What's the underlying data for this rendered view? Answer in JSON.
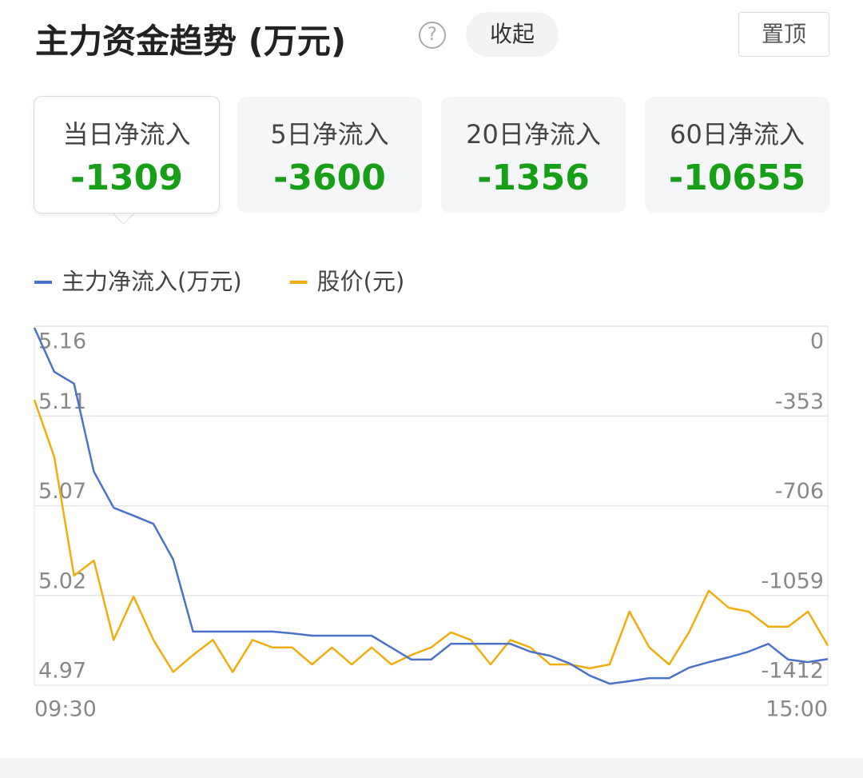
{
  "header": {
    "title": "主力资金趋势 (万元)",
    "help": "?",
    "collapse": "收起",
    "pin": "置顶"
  },
  "cards": [
    {
      "label": "当日净流入",
      "value": "-1309"
    },
    {
      "label": "5日净流入",
      "value": "-3600"
    },
    {
      "label": "20日净流入",
      "value": "-1356"
    },
    {
      "label": "60日净流入",
      "value": "-10655"
    }
  ],
  "chart_data": {
    "type": "line",
    "grid": true,
    "x": [
      0,
      6,
      12,
      18,
      24,
      30,
      36,
      42,
      48,
      54,
      60,
      66,
      72,
      78,
      84,
      90,
      96,
      102,
      108,
      114,
      120,
      126,
      132,
      138,
      144,
      150,
      156,
      162,
      168,
      174,
      180,
      186,
      192,
      198,
      204,
      210,
      216,
      222,
      228,
      234,
      240
    ],
    "xlim": [
      0,
      240
    ],
    "xticks": [
      {
        "value": 0,
        "label": "09:30"
      },
      {
        "value": 240,
        "label": "15:00"
      }
    ],
    "ylim": [
      4.97,
      5.16
    ],
    "yticks": [
      {
        "value": 5.16,
        "label": "5.16"
      },
      {
        "value": 5.1125,
        "label": "5.11"
      },
      {
        "value": 5.065,
        "label": "5.07"
      },
      {
        "value": 5.0175,
        "label": "5.02"
      },
      {
        "value": 4.97,
        "label": "4.97"
      }
    ],
    "y2lim": [
      -1412,
      0
    ],
    "y2ticks": [
      0,
      -353,
      -706,
      -1059,
      -1412
    ],
    "series": [
      {
        "name": "主力净流入(万元)",
        "color": "#4a72c9",
        "axis": "y2",
        "values": [
          -6,
          -179,
          -226,
          -572,
          -714,
          -745,
          -777,
          -918,
          -1201,
          -1201,
          -1201,
          -1201,
          -1201,
          -1208,
          -1217,
          -1217,
          -1217,
          -1217,
          -1264,
          -1311,
          -1311,
          -1249,
          -1249,
          -1249,
          -1249,
          -1280,
          -1296,
          -1327,
          -1374,
          -1406,
          -1396,
          -1384,
          -1384,
          -1343,
          -1321,
          -1302,
          -1280,
          -1249,
          -1311,
          -1321,
          -1309
        ]
      },
      {
        "name": "股价(元)",
        "color": "#f0ad0e",
        "values": [
          5.121,
          5.091,
          5.028,
          5.036,
          4.994,
          5.017,
          4.994,
          4.977,
          4.986,
          4.994,
          4.977,
          4.994,
          4.99,
          4.99,
          4.981,
          4.99,
          4.981,
          4.99,
          4.981,
          4.986,
          4.99,
          4.998,
          4.994,
          4.981,
          4.994,
          4.99,
          4.981,
          4.981,
          4.979,
          4.981,
          5.009,
          4.99,
          4.981,
          4.998,
          5.02,
          5.011,
          5.009,
          5.001,
          5.001,
          5.009,
          4.991
        ]
      }
    ]
  }
}
